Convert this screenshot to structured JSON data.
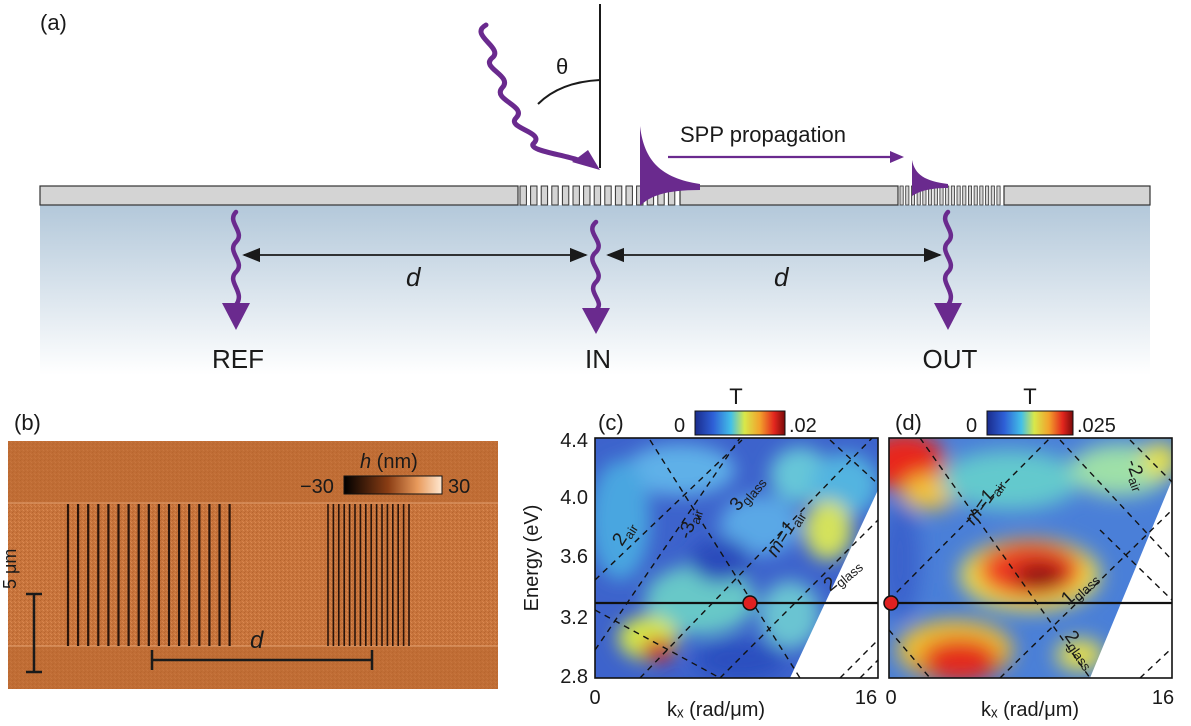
{
  "panels": {
    "a": {
      "label": "(a)",
      "theta": "θ",
      "spp_label": "SPP propagation",
      "distance": "d",
      "ref_label": "REF",
      "in_label": "IN",
      "out_label": "OUT"
    },
    "b": {
      "label": "(b)",
      "colorbar_title_h": "h",
      "colorbar_title_unit": " (nm)",
      "colorbar_min": "−30",
      "colorbar_max": "30",
      "scale_label": "5 μm",
      "distance": "d"
    },
    "c": {
      "label": "(c)",
      "colorbar_title": "T",
      "colorbar_min": "0",
      "colorbar_max": ".02",
      "ylabel": "Energy (eV)",
      "xlabel": "kₓ (rad/μm)",
      "yticks": [
        "4.4",
        "4.0",
        "3.6",
        "3.2",
        "2.8"
      ],
      "xticks": [
        "0",
        "16"
      ],
      "mode_labels": {
        "air2": {
          "main": "2",
          "sub": "air"
        },
        "air3": {
          "main": "-3",
          "sub": "air"
        },
        "glass3": {
          "main": "3",
          "sub": "glass"
        },
        "air1": {
          "main": "m=1",
          "sub": "air"
        },
        "glass2": {
          "main": "2",
          "sub": "glass"
        }
      }
    },
    "d": {
      "label": "(d)",
      "colorbar_title": "T",
      "colorbar_min": "0",
      "colorbar_max": ".025",
      "xlabel": "kₓ (rad/μm)",
      "xticks": [
        "0",
        "16"
      ],
      "mode_labels": {
        "air1": {
          "main": "m=1",
          "sub": "air"
        },
        "air2": {
          "main": "-2",
          "sub": "air"
        },
        "glass1": {
          "main": "1",
          "sub": "glass"
        },
        "glass2": {
          "main": "2",
          "sub": "glass"
        }
      }
    }
  },
  "colors": {
    "arrow_purple": "#6a2a8e",
    "metal_fill": "#d4d4d4",
    "substrate_top": "#b3c8da",
    "sem_background": "#c8743c"
  }
}
